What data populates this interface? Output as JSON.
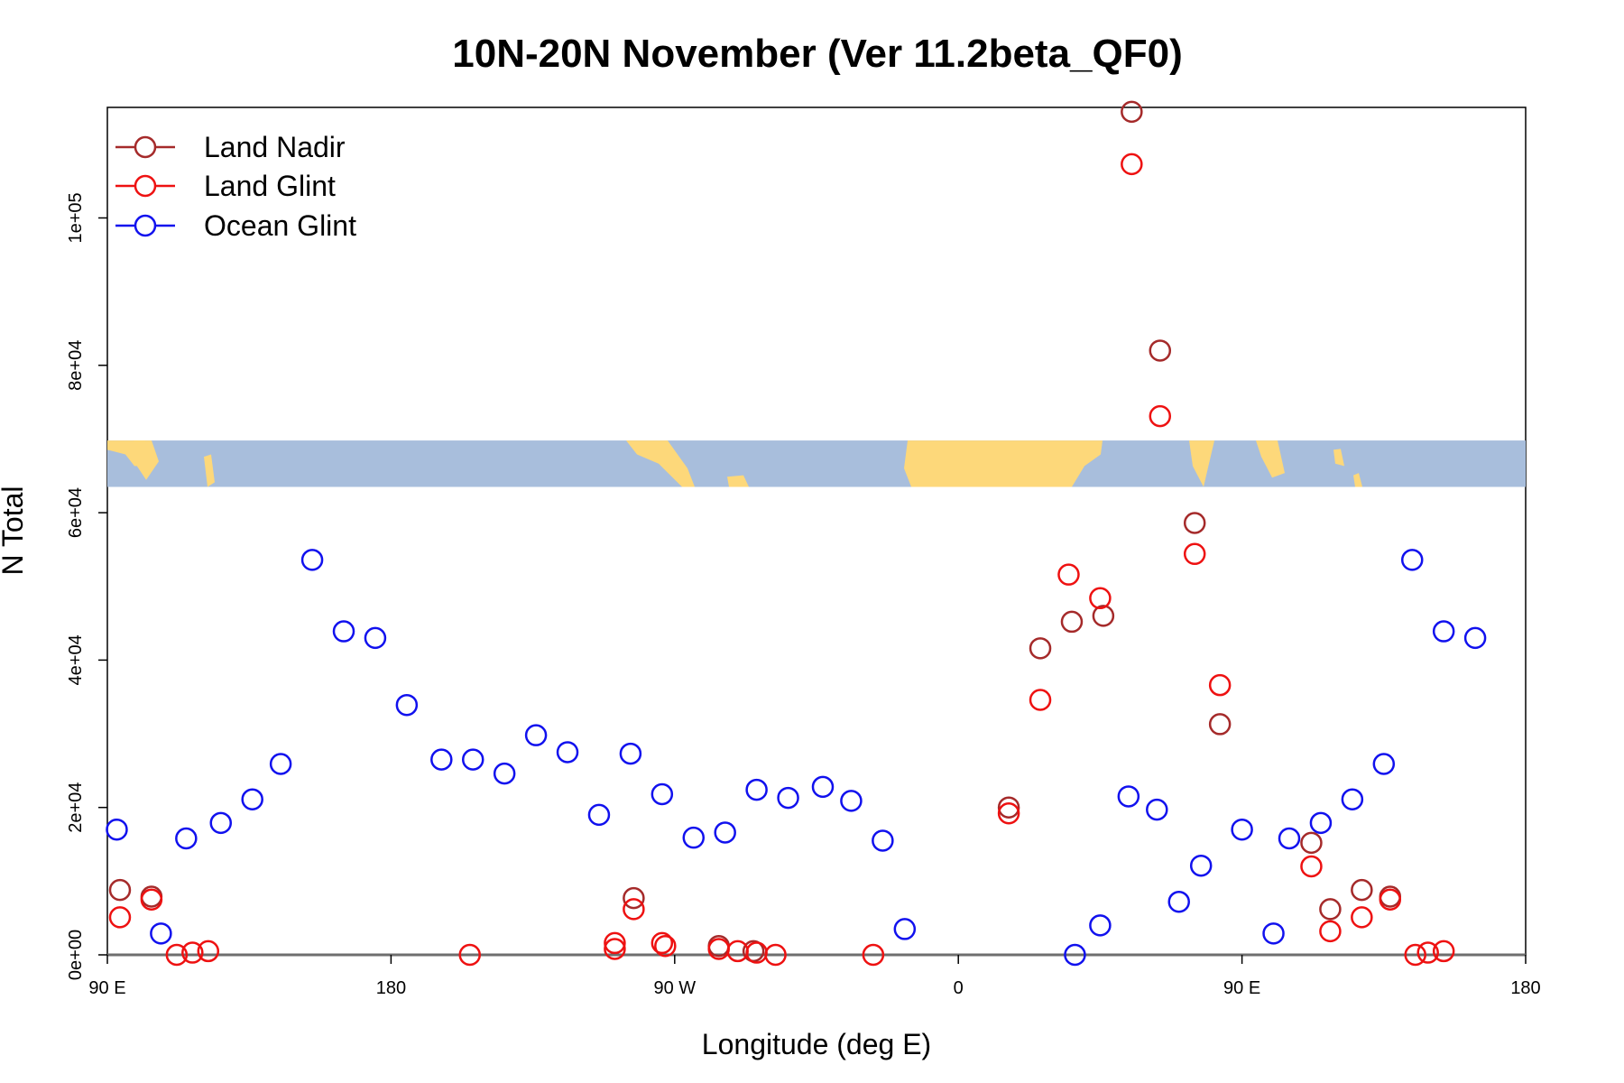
{
  "colors": {
    "land_nadir": "#A52A2A",
    "land_glint": "#EE1111",
    "ocean_glint": "#1111EE",
    "map_ocean": "#A8BEDC",
    "map_land": "#FDD87A",
    "axis": "#000000"
  },
  "chart_data": {
    "type": "scatter",
    "title": "10N-20N November (Ver 11.2beta_QF0)",
    "xlabel": "Longitude (deg E)",
    "ylabel": "N Total",
    "x_axis": {
      "range_unwrapped": [
        90,
        540
      ],
      "ticks": [
        90,
        180,
        270,
        360,
        450,
        540
      ],
      "tick_labels": [
        "90 E",
        "180",
        "90 W",
        "0",
        "90 E",
        "180"
      ]
    },
    "y_axis": {
      "ylim": [
        0,
        115000
      ],
      "ticks": [
        0,
        20000,
        40000,
        60000,
        80000,
        100000
      ],
      "tick_labels": [
        "0e+00",
        "2e+04",
        "4e+04",
        "6e+04",
        "8e+04",
        "1e+05"
      ]
    },
    "legend": {
      "placement": "top-left",
      "entries": [
        "Land Nadir",
        "Land Glint",
        "Ocean Glint"
      ]
    },
    "grid": false,
    "map_strip": {
      "y_range": [
        63500,
        69800
      ],
      "description_visible": false
    },
    "series": [
      {
        "name": "Land Nadir",
        "color_key": "land_nadir",
        "points": [
          [
            94,
            8800
          ],
          [
            104,
            7900
          ],
          [
            257,
            7700
          ],
          [
            284,
            1200
          ],
          [
            295,
            500
          ],
          [
            376,
            20000
          ],
          [
            386,
            41600
          ],
          [
            396,
            45200
          ],
          [
            406,
            46000
          ],
          [
            415,
            114400
          ],
          [
            424,
            82000
          ],
          [
            435,
            58600
          ],
          [
            443,
            31300
          ],
          [
            472,
            15200
          ],
          [
            478,
            6200
          ],
          [
            488,
            8800
          ],
          [
            497,
            7900
          ]
        ]
      },
      {
        "name": "Land Glint",
        "color_key": "land_glint",
        "points": [
          [
            94,
            5100
          ],
          [
            104,
            7500
          ],
          [
            112,
            0
          ],
          [
            117,
            300
          ],
          [
            122,
            500
          ],
          [
            205,
            0
          ],
          [
            251,
            800
          ],
          [
            251,
            1600
          ],
          [
            257,
            6200
          ],
          [
            266,
            1600
          ],
          [
            267,
            1200
          ],
          [
            284,
            800
          ],
          [
            290,
            500
          ],
          [
            296,
            300
          ],
          [
            302,
            0
          ],
          [
            333,
            0
          ],
          [
            376,
            19200
          ],
          [
            386,
            34600
          ],
          [
            395,
            51600
          ],
          [
            405,
            48400
          ],
          [
            415,
            107300
          ],
          [
            424,
            73100
          ],
          [
            435,
            54400
          ],
          [
            443,
            36600
          ],
          [
            472,
            12000
          ],
          [
            478,
            3200
          ],
          [
            488,
            5100
          ],
          [
            497,
            7500
          ],
          [
            505,
            0
          ],
          [
            509,
            300
          ],
          [
            514,
            500
          ]
        ]
      },
      {
        "name": "Ocean Glint",
        "color_key": "ocean_glint",
        "points": [
          [
            93,
            17000
          ],
          [
            107,
            2900
          ],
          [
            115,
            15800
          ],
          [
            126,
            17900
          ],
          [
            136,
            21100
          ],
          [
            145,
            25900
          ],
          [
            155,
            53600
          ],
          [
            165,
            43900
          ],
          [
            175,
            43000
          ],
          [
            185,
            33900
          ],
          [
            196,
            26500
          ],
          [
            206,
            26500
          ],
          [
            216,
            24600
          ],
          [
            226,
            29800
          ],
          [
            236,
            27500
          ],
          [
            246,
            19000
          ],
          [
            256,
            27300
          ],
          [
            266,
            21800
          ],
          [
            276,
            15900
          ],
          [
            286,
            16600
          ],
          [
            296,
            22400
          ],
          [
            306,
            21300
          ],
          [
            317,
            22800
          ],
          [
            326,
            20900
          ],
          [
            336,
            15500
          ],
          [
            343,
            3500
          ],
          [
            397,
            0
          ],
          [
            405,
            4000
          ],
          [
            414,
            21500
          ],
          [
            423,
            19700
          ],
          [
            430,
            7200
          ],
          [
            437,
            12100
          ],
          [
            450,
            17000
          ],
          [
            460,
            2900
          ],
          [
            465,
            15800
          ],
          [
            475,
            17900
          ],
          [
            485,
            21100
          ],
          [
            495,
            25900
          ],
          [
            504,
            53600
          ],
          [
            514,
            43900
          ],
          [
            524,
            43000
          ]
        ]
      }
    ]
  }
}
